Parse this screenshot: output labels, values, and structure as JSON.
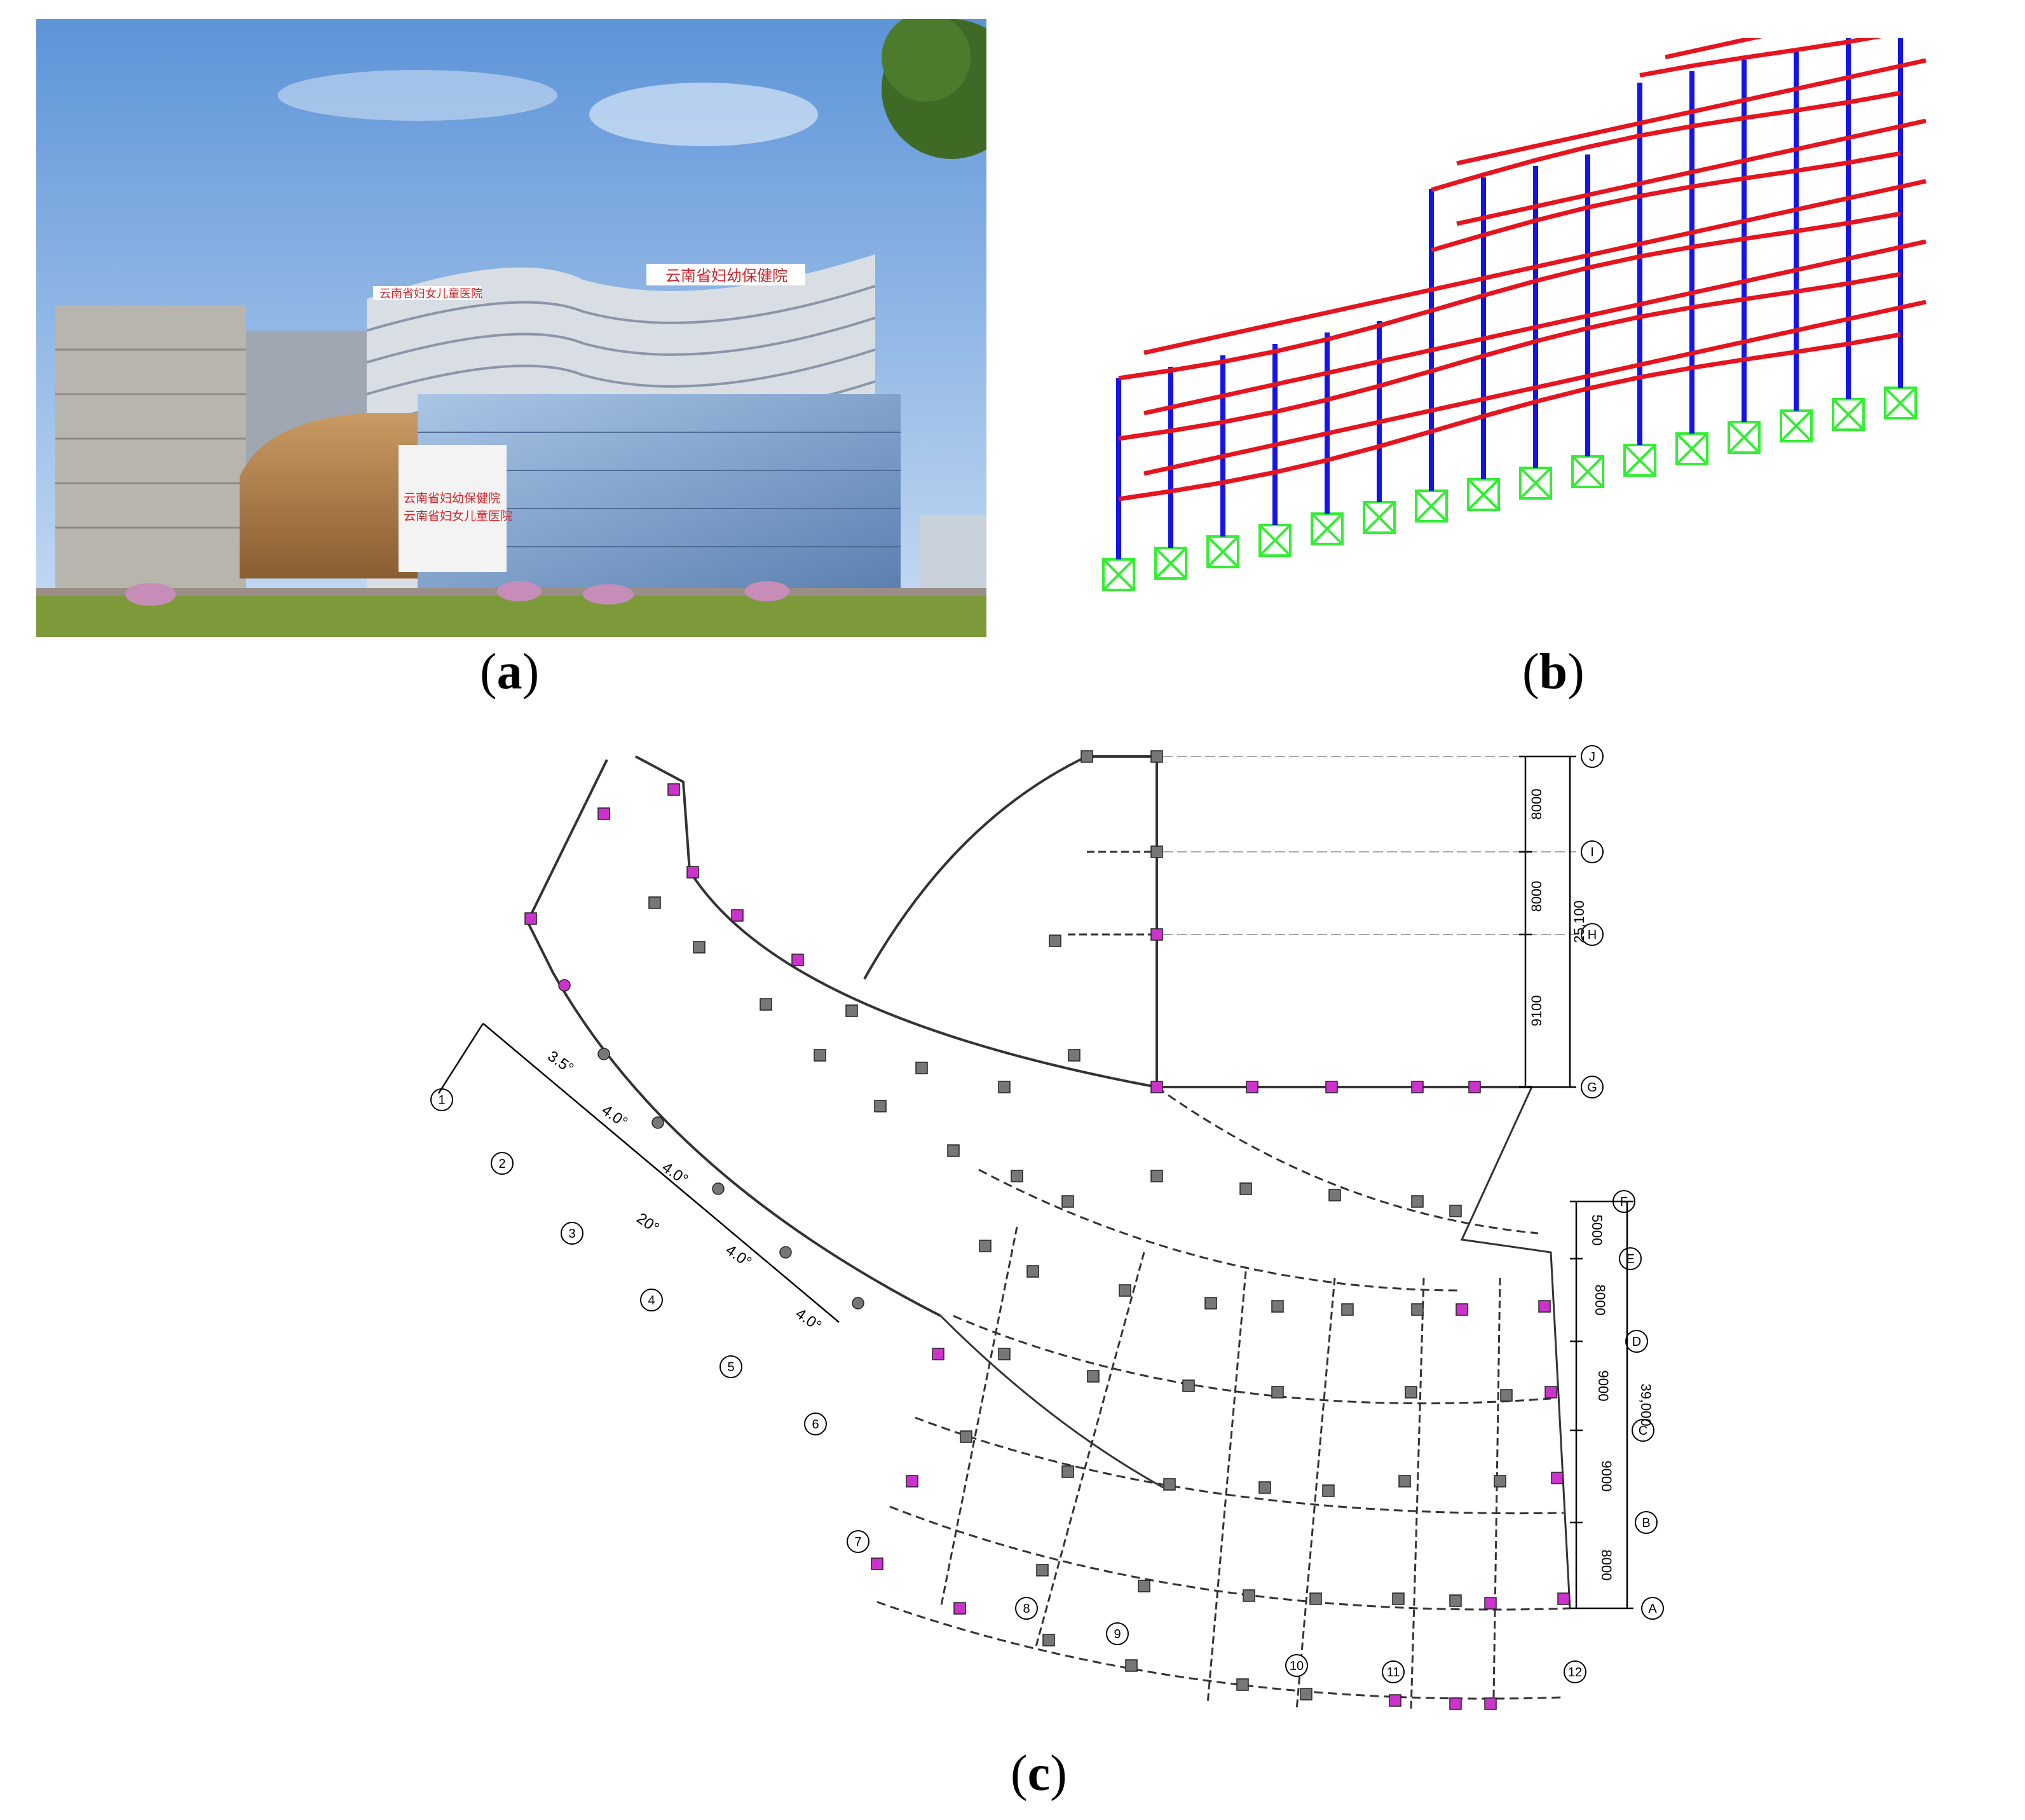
{
  "figure": {
    "captions": [
      "(a)",
      "(b)",
      "(c)"
    ],
    "caption_letters": [
      "a",
      "b",
      "c"
    ]
  },
  "panel_a": {
    "sign_top_right": "云南省妇幼保健院",
    "sign_top_left": "云南省妇女儿童医院",
    "sign_front_1": "云南省妇幼保健院",
    "sign_front_2": "云南省妇女儿童医院",
    "colors": {
      "sky": "#7fb0e6",
      "ground": "#7c9a3a",
      "sign": "#d1252b"
    }
  },
  "panel_b": {
    "colors": {
      "columns": "#1414e6",
      "beams": "#e6141e",
      "supports": "#33ee33"
    }
  },
  "panel_c": {
    "row_axes": [
      "A",
      "B",
      "C",
      "D",
      "E",
      "F",
      "G",
      "H",
      "I",
      "J"
    ],
    "col_axes": [
      "1",
      "2",
      "3",
      "4",
      "5",
      "6",
      "7",
      "8",
      "9",
      "10",
      "11",
      "12"
    ],
    "angles": [
      "3.5°",
      "4.0°",
      "4.0°",
      "4.0°",
      "4.0°",
      "20°"
    ],
    "dims_upper": [
      "8000",
      "8000",
      "9100",
      "25,100"
    ],
    "dims_lower": [
      "5000",
      "8000",
      "9000",
      "9000",
      "8000",
      "39,000"
    ],
    "colors": {
      "column_magenta": "#cc33cc",
      "column_gray": "#777777"
    }
  }
}
